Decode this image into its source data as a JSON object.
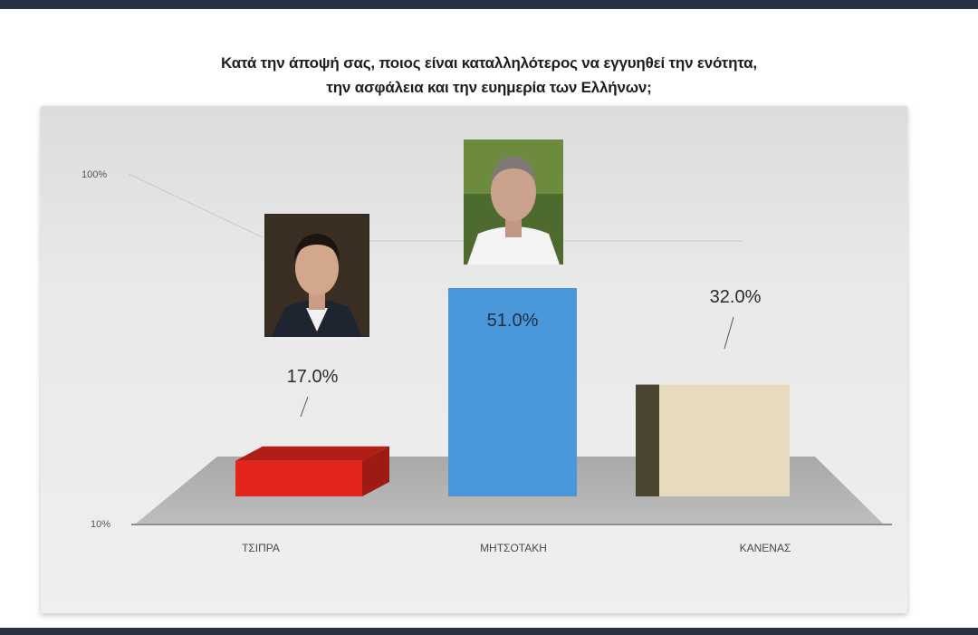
{
  "title_lines": [
    "Κατά την άποψή σας, ποιος είναι καταλληλότερος να εγγυηθεί την ενότητα,",
    "την ασφάλεια  και την ευημερία των Ελλήνων;"
  ],
  "chart_data": {
    "type": "bar",
    "title": "Κατά την άποψή σας, ποιος είναι καταλληλότερος να εγγυηθεί την ενότητα, την ασφάλεια  και την ευημερία των Ελλήνων;",
    "categories": [
      "ΤΣΙΠΡΑ",
      "ΜΗΤΣΟΤΑΚΗ",
      "ΚΑΝΕΝΑΣ"
    ],
    "values": [
      17.0,
      51.0,
      32.0
    ],
    "value_labels": [
      "17.0%",
      "51.0%",
      "32.0%"
    ],
    "y_tick_labels": [
      "10%",
      "100%"
    ],
    "ylim": [
      10,
      100
    ],
    "xlabel": "",
    "ylabel": "",
    "grid": false,
    "legend": "none",
    "colors": [
      "#e2261c",
      "#4a97d9",
      "#e6dcbd"
    ]
  },
  "photos": [
    {
      "name": "tsipras-photo",
      "for": "ΤΣΙΠΡΑ"
    },
    {
      "name": "mitsotakis-photo",
      "for": "ΜΗΤΣΟΤΑΚΗ"
    }
  ]
}
